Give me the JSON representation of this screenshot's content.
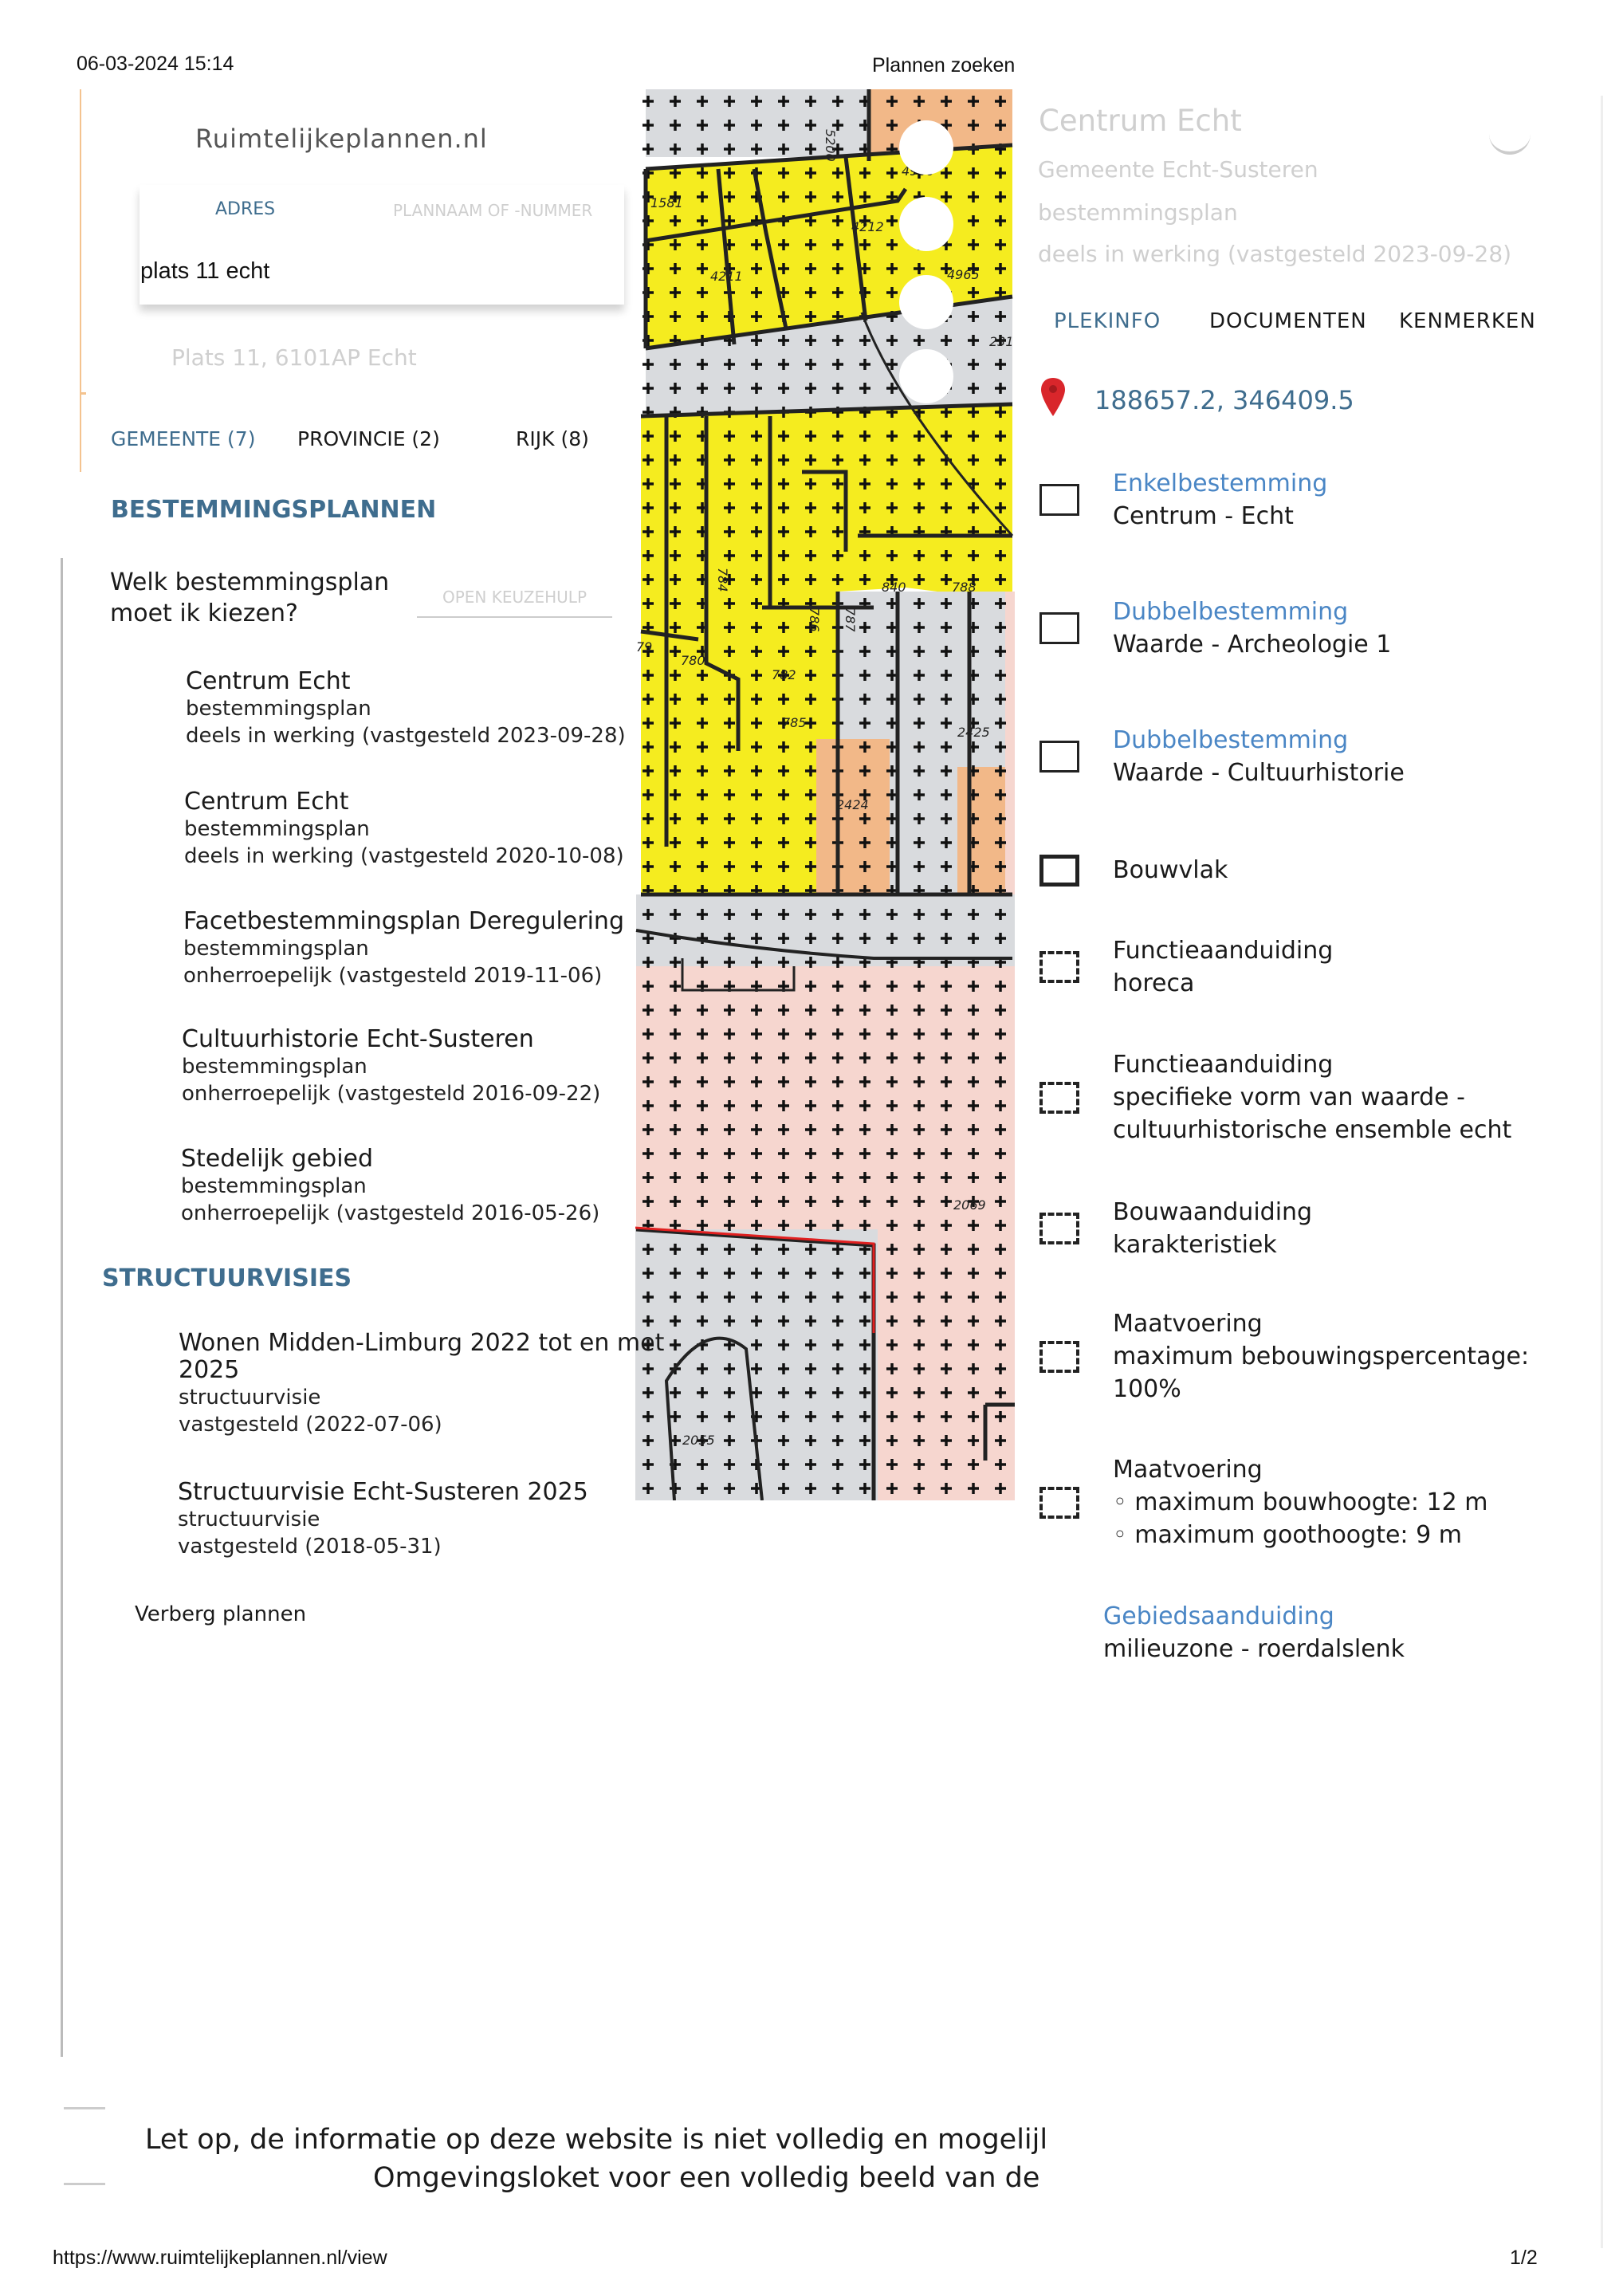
{
  "print_header": {
    "datetime": "06-03-2024 15:14",
    "title": "Plannen zoeken"
  },
  "print_footer": {
    "url": "https://www.ruimtelijkeplannen.nl/view",
    "page": "1/2"
  },
  "search": {
    "logo": "Ruimtelijkeplannen.nl",
    "tabs": [
      "ADRES",
      "PLANNAAM OF -NUMMER"
    ],
    "query": "plats 11 echt",
    "result": "Plats 11, 6101AP Echt"
  },
  "level_tabs": [
    "GEMEENTE (7)",
    "PROVINCIE (2)",
    "RIJK (8)"
  ],
  "bestemmingsplannen": {
    "heading": "BESTEMMINGSPLANNEN",
    "question_line1": "Welk bestemmingsplan",
    "question_line2": "moet ik kiezen?",
    "help_button": "OPEN KEUZEHULP",
    "items": [
      {
        "title": "Centrum Echt",
        "type": "bestemmingsplan",
        "status": "deels in werking (vastgesteld 2023-09-28)"
      },
      {
        "title": "Centrum Echt",
        "type": "bestemmingsplan",
        "status": "deels in werking (vastgesteld 2020-10-08)"
      },
      {
        "title": "Facetbestemmingsplan Deregulering",
        "type": "bestemmingsplan",
        "status": "onherroepelijk (vastgesteld 2019-11-06)"
      },
      {
        "title": "Cultuurhistorie Echt-Susteren",
        "type": "bestemmingsplan",
        "status": "onherroepelijk (vastgesteld 2016-09-22)"
      },
      {
        "title": "Stedelijk gebied",
        "type": "bestemmingsplan",
        "status": "onherroepelijk (vastgesteld 2016-05-26)"
      }
    ]
  },
  "structuurvisies": {
    "heading": "STRUCTUURVISIES",
    "items": [
      {
        "title_line1": "Wonen Midden-Limburg 2022 tot en met",
        "title_line2": "2025",
        "type": "structuurvisie",
        "status": "vastgesteld (2022-07-06)"
      },
      {
        "title_line1": "Structuurvisie Echt-Susteren 2025",
        "title_line2": "",
        "type": "structuurvisie",
        "status": "vastgesteld (2018-05-31)"
      }
    ]
  },
  "hide_plans": "Verberg plannen",
  "map": {
    "parcel_labels": [
      "5200",
      "1581",
      "4211",
      "4212",
      "4965",
      "4966",
      "231",
      "784",
      "780",
      "782",
      "786",
      "787",
      "840",
      "788",
      "785",
      "79",
      "2425",
      "2424",
      "2069",
      "2055"
    ],
    "colors": {
      "centrum": "#f5ec1f",
      "verkeer": "#d9dbde",
      "wonen": "#f2b888",
      "tuin": "#f6d6cf"
    }
  },
  "details": {
    "title": "Centrum Echt",
    "municipality": "Gemeente Echt-Susteren",
    "type": "bestemmingsplan",
    "status": "deels in werking (vastgesteld 2023-09-28)",
    "tabs": [
      "PLEKINFO",
      "DOCUMENTEN",
      "KENMERKEN"
    ],
    "active_tab": "PLEKINFO",
    "coordinates": "188657.2, 346409.5",
    "pin_color": "#d9262b",
    "legend": [
      {
        "category": "Enkelbestemming",
        "lines": [
          "Centrum - Echt"
        ],
        "icon": "solid-box",
        "linked": true
      },
      {
        "category": "Dubbelbestemming",
        "lines": [
          "Waarde - Archeologie 1"
        ],
        "icon": "solid-box",
        "linked": true
      },
      {
        "category": "Dubbelbestemming",
        "lines": [
          "Waarde - Cultuurhistorie"
        ],
        "icon": "solid-box",
        "linked": true
      },
      {
        "category": "Bouwvlak",
        "lines": [],
        "icon": "bold-box",
        "linked": false
      },
      {
        "category": "Functieaanduiding",
        "lines": [
          "horeca"
        ],
        "icon": "dashed-box",
        "linked": false
      },
      {
        "category": "Functieaanduiding",
        "lines": [
          "specifieke vorm van waarde -",
          "cultuurhistorische ensemble echt"
        ],
        "icon": "dashed-box",
        "linked": false
      },
      {
        "category": "Bouwaanduiding",
        "lines": [
          "karakteristiek"
        ],
        "icon": "dashed-box",
        "linked": false
      },
      {
        "category": "Maatvoering",
        "lines": [
          "maximum bebouwingspercentage:",
          "100%"
        ],
        "icon": "dashed-box",
        "linked": false
      },
      {
        "category": "Maatvoering",
        "lines": [
          "◦  maximum bouwhoogte: 12 m",
          "◦  maximum goothoogte: 9 m"
        ],
        "icon": "dashed-box",
        "linked": false
      },
      {
        "category": "Gebiedsaanduiding",
        "lines": [
          "milieuzone - roerdalslenk"
        ],
        "icon": "none",
        "linked": true
      }
    ]
  },
  "disclaimer": {
    "line1": "Let op, de informatie op deze website is niet volledig en mogelijl",
    "line2": "Omgevingsloket voor een volledig beeld van de"
  }
}
